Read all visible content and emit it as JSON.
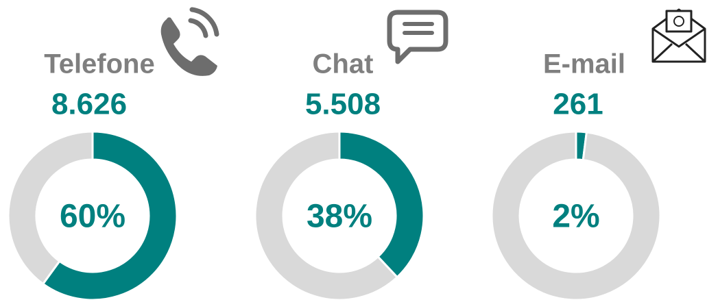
{
  "chart_data": [
    {
      "type": "donut",
      "title": "Telefone",
      "subtitle": "8.626",
      "values": [
        60,
        40
      ],
      "value_labels": [
        "60%",
        null
      ],
      "colors": [
        "#00807f",
        "#d9d9d9"
      ]
    },
    {
      "type": "donut",
      "title": "Chat",
      "subtitle": "5.508",
      "values": [
        38,
        62
      ],
      "value_labels": [
        "38%",
        null
      ],
      "colors": [
        "#00807f",
        "#d9d9d9"
      ]
    },
    {
      "type": "donut",
      "title": "E-mail",
      "subtitle": "261",
      "values": [
        2,
        98
      ],
      "value_labels": [
        "2%",
        null
      ],
      "colors": [
        "#00807f",
        "#d9d9d9"
      ]
    }
  ]
}
